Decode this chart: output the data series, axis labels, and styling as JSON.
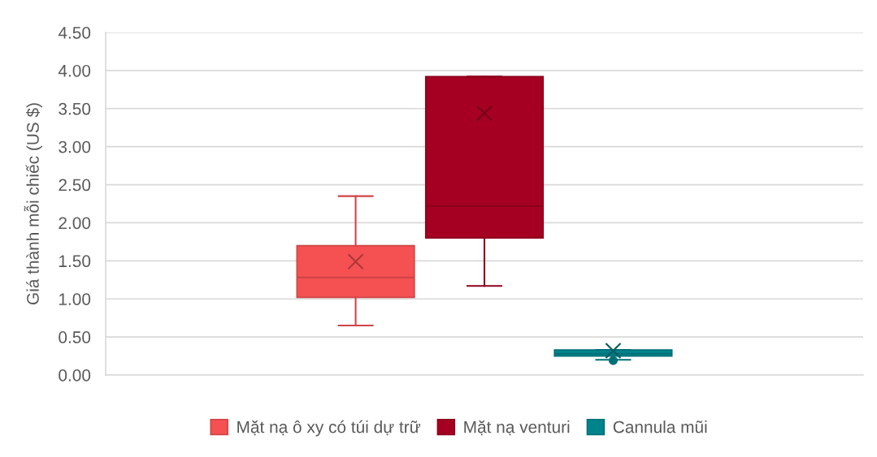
{
  "chart_data": {
    "type": "box",
    "ylabel": "Giá thành mỗi chiếc (US $)",
    "categories": [
      null
    ],
    "series": [
      {
        "name": "Mặt nạ ô xy có túi dự trữ",
        "color": "#f55152",
        "boxes": [
          {
            "low": 0.65,
            "q1": 1.02,
            "median": 1.28,
            "q3": 1.7,
            "high": 2.35,
            "mean": 1.49
          }
        ]
      },
      {
        "name": "Mặt nạ venturi",
        "color": "#a50021",
        "boxes": [
          {
            "low": 1.17,
            "q1": 1.8,
            "median": 2.22,
            "q3": 3.92,
            "high": 3.92,
            "mean": 3.44
          }
        ]
      },
      {
        "name": "Cannula mũi",
        "color": "#00848c",
        "boxes": [
          {
            "low": 0.2,
            "q1": 0.25,
            "median": 0.28,
            "q3": 0.33,
            "high": 0.33,
            "mean": 0.32,
            "outliers": [
              0.19
            ]
          }
        ]
      }
    ],
    "ylim": [
      0,
      4.5
    ],
    "yticks": [
      {
        "value": 0,
        "label": "0.00"
      },
      {
        "value": 0.5,
        "label": "0.50"
      },
      {
        "value": 1,
        "label": "1.00"
      },
      {
        "value": 1.5,
        "label": "1.50"
      },
      {
        "value": 2,
        "label": "2.00"
      },
      {
        "value": 2.5,
        "label": "2.50"
      },
      {
        "value": 3,
        "label": "3.00"
      },
      {
        "value": 3.5,
        "label": "3.50"
      },
      {
        "value": 4,
        "label": "4.00"
      },
      {
        "value": 4.5,
        "label": "4.50"
      }
    ],
    "grid": "y",
    "legend": "bottom"
  }
}
